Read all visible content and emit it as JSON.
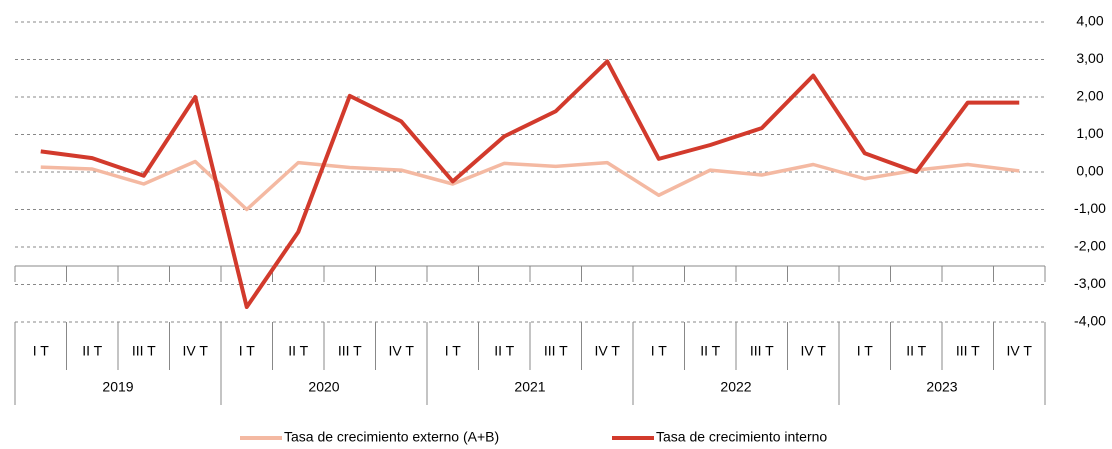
{
  "chart_data": {
    "type": "line",
    "categories": [
      "I T",
      "II T",
      "III T",
      "IV T",
      "I T",
      "II T",
      "III T",
      "IV T",
      "I T",
      "II T",
      "III T",
      "IV T",
      "I T",
      "II T",
      "III T",
      "IV T",
      "I T",
      "II T",
      "III T",
      "IV T"
    ],
    "years": [
      "2019",
      "2020",
      "2021",
      "2022",
      "2023"
    ],
    "series": [
      {
        "name": "Tasa de crecimiento externo (A+B)",
        "color": "#f4b9a2",
        "values": [
          0.13,
          0.08,
          -0.32,
          0.28,
          -1.0,
          0.25,
          0.12,
          0.05,
          -0.32,
          0.23,
          0.15,
          0.25,
          -0.62,
          0.05,
          -0.08,
          0.2,
          -0.18,
          0.05,
          0.2,
          0.03
        ]
      },
      {
        "name": "Tasa de crecimiento interno",
        "color": "#d23a2c",
        "values": [
          0.55,
          0.37,
          -0.1,
          2.0,
          -3.6,
          -1.6,
          2.03,
          1.35,
          -0.25,
          0.95,
          1.62,
          2.95,
          0.35,
          0.72,
          1.17,
          2.57,
          0.5,
          0.0,
          1.85,
          1.85
        ]
      }
    ],
    "ylim": [
      -4,
      4
    ],
    "yticks": [
      {
        "value": -4,
        "label": "-4,00"
      },
      {
        "value": -3,
        "label": "-3,00"
      },
      {
        "value": -2,
        "label": "-2,00"
      },
      {
        "value": -1,
        "label": "-1,00"
      },
      {
        "value": 0,
        "label": "0,00"
      },
      {
        "value": 1,
        "label": "1,00"
      },
      {
        "value": 2,
        "label": "2,00"
      },
      {
        "value": 3,
        "label": "3,00"
      },
      {
        "value": 4,
        "label": "4,00"
      }
    ],
    "grid": true
  }
}
